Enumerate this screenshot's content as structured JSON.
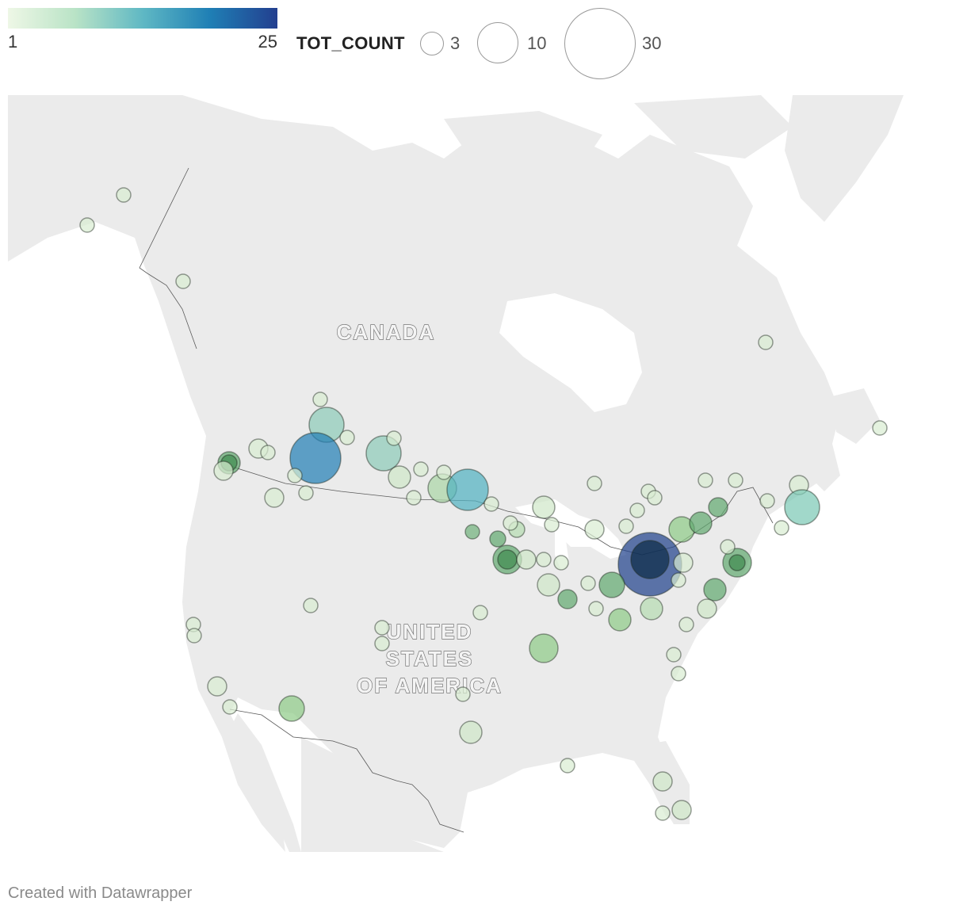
{
  "color_legend": {
    "min_label": "1",
    "max_label": "25",
    "colors": [
      "#eef7e6",
      "#b9e3c6",
      "#5fb8c4",
      "#1f7fb5",
      "#233f8f"
    ]
  },
  "size_legend": {
    "title": "TOT_COUNT",
    "items": [
      {
        "label": "3",
        "value": 3
      },
      {
        "label": "10",
        "value": 10
      },
      {
        "label": "30",
        "value": 30
      }
    ]
  },
  "map": {
    "land_color": "#ebebeb",
    "border_color": "#5a5a5a",
    "labels": {
      "canada": "CANADA",
      "usa_line1": "UNITED",
      "usa_line2": "STATES",
      "usa_line3": "OF AMERICA"
    }
  },
  "credit": "Created with Datawrapper"
}
